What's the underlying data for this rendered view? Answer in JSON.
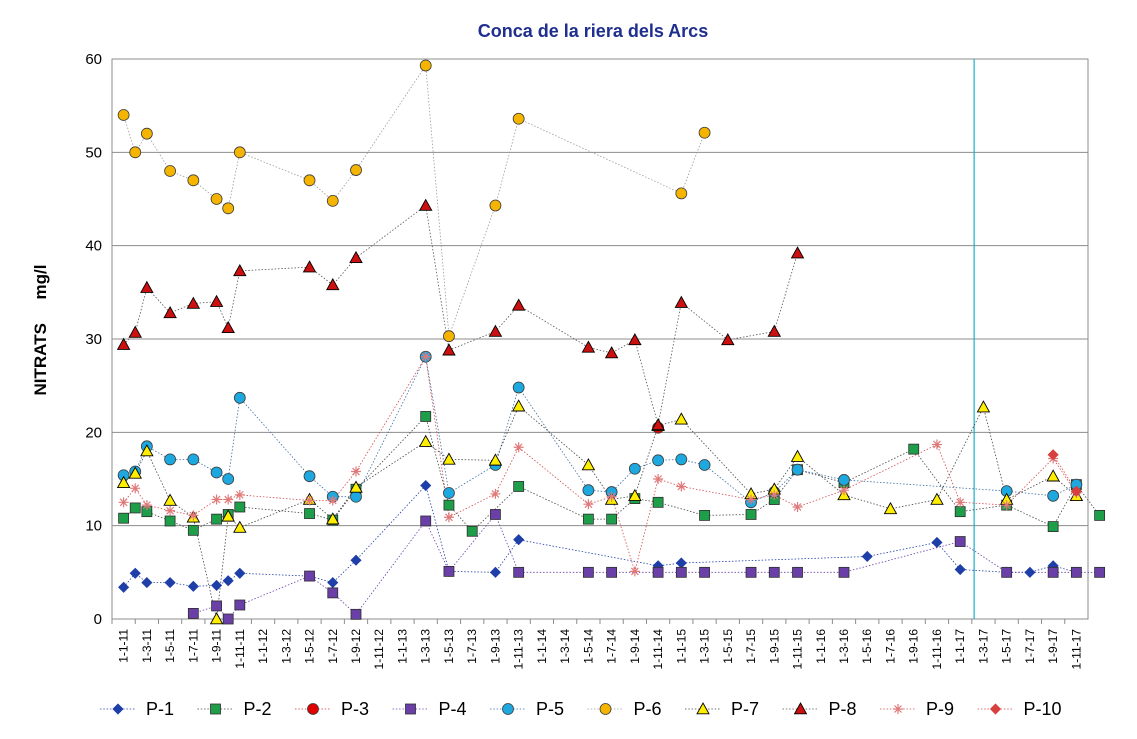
{
  "chart_data": {
    "type": "line",
    "title": "Conca de la riera dels Arcs",
    "ylabel": "NITRATS     mg/l",
    "xlabel": "",
    "ylim": [
      0,
      60
    ],
    "y_ticks": [
      "0",
      "10",
      "20",
      "30",
      "40",
      "50",
      "60"
    ],
    "x_ticks": [
      "1-1-11",
      "1-3-11",
      "1-5-11",
      "1-7-11",
      "1-9-11",
      "1-11-11",
      "1-1-12",
      "1-3-12",
      "1-5-12",
      "1-7-12",
      "1-9-12",
      "1-11-12",
      "1-1-13",
      "1-3-13",
      "1-5-13",
      "1-7-13",
      "1-9-13",
      "1-11-13",
      "1-1-14",
      "1-3-14",
      "1-5-14",
      "1-7-14",
      "1-9-14",
      "1-11-14",
      "1-1-15",
      "1-3-15",
      "1-5-15",
      "1-7-15",
      "1-9-15",
      "1-11-15",
      "1-1-16",
      "1-3-16",
      "1-5-16",
      "1-7-16",
      "1-9-16",
      "1-11-16",
      "1-1-17",
      "1-3-17",
      "1-5-17",
      "1-7-17",
      "1-9-17",
      "1-11-17"
    ],
    "grid": "horizontal",
    "legend_position": "bottom",
    "vertical_marker_x": 36.6,
    "series": [
      {
        "name": "P-1",
        "color": "#1f3fa8",
        "marker": "diamond",
        "line": "#1f3fa8",
        "points": [
          [
            0,
            3.4
          ],
          [
            0.5,
            4.9
          ],
          [
            1,
            3.9
          ],
          [
            2,
            3.9
          ],
          [
            3,
            3.5
          ],
          [
            4,
            3.6
          ],
          [
            4.5,
            4.1
          ],
          [
            5,
            4.9
          ],
          [
            8,
            4.6
          ],
          [
            9,
            3.9
          ],
          [
            10,
            6.3
          ],
          [
            13,
            14.3
          ],
          [
            14,
            5.1
          ],
          [
            16,
            5
          ],
          [
            17,
            8.5
          ],
          [
            23,
            5.7
          ],
          [
            24,
            6
          ],
          [
            32,
            6.7
          ],
          [
            35,
            8.2
          ],
          [
            36,
            5.3
          ],
          [
            38,
            5
          ],
          [
            39,
            5
          ],
          [
            40,
            5.7
          ],
          [
            41,
            5
          ]
        ]
      },
      {
        "name": "P-2",
        "color": "#1f9e4a",
        "marker": "square",
        "line": "#444444",
        "points": [
          [
            0,
            10.8
          ],
          [
            0.5,
            11.9
          ],
          [
            1,
            11.5
          ],
          [
            2,
            10.5
          ],
          [
            3,
            9.5
          ],
          [
            4,
            10.7
          ],
          [
            4.5,
            11.2
          ],
          [
            5,
            12
          ],
          [
            8,
            11.3
          ],
          [
            9,
            10.6
          ],
          [
            10,
            13.9
          ],
          [
            13,
            21.7
          ],
          [
            14,
            12.2
          ],
          [
            15,
            9.4
          ],
          [
            17,
            14.2
          ],
          [
            20,
            10.7
          ],
          [
            21,
            10.7
          ],
          [
            22,
            12.9
          ],
          [
            23,
            12.5
          ],
          [
            25,
            11.1
          ],
          [
            27,
            11.2
          ],
          [
            28,
            12.8
          ],
          [
            29,
            16
          ],
          [
            31,
            14.6
          ],
          [
            34,
            18.2
          ],
          [
            36,
            11.5
          ],
          [
            38,
            12.2
          ],
          [
            40,
            9.9
          ],
          [
            41,
            14.4
          ],
          [
            42,
            11.1
          ]
        ]
      },
      {
        "name": "P-3",
        "color": "#e00000",
        "marker": "circle",
        "line": "#cc3333",
        "points": [
          [
            23,
            20.5
          ]
        ]
      },
      {
        "name": "P-4",
        "color": "#6a3fa8",
        "marker": "square",
        "line": "#6a3fa8",
        "points": [
          [
            3,
            0.6
          ],
          [
            4,
            1.4
          ],
          [
            4.5,
            0
          ],
          [
            5,
            1.5
          ],
          [
            8,
            4.6
          ],
          [
            9,
            2.8
          ],
          [
            10,
            0.5
          ],
          [
            13,
            10.5
          ],
          [
            14,
            5.1
          ],
          [
            16,
            11.2
          ],
          [
            17,
            5
          ],
          [
            20,
            5
          ],
          [
            21,
            5
          ],
          [
            23,
            5
          ],
          [
            24,
            5
          ],
          [
            25,
            5
          ],
          [
            27,
            5
          ],
          [
            28,
            5
          ],
          [
            29,
            5
          ],
          [
            31,
            5
          ],
          [
            36,
            8.3
          ],
          [
            38,
            5
          ],
          [
            40,
            5
          ],
          [
            41,
            5
          ],
          [
            42,
            5
          ]
        ]
      },
      {
        "name": "P-5",
        "color": "#1ea8e0",
        "marker": "circle",
        "line": "#3a6ea8",
        "points": [
          [
            0,
            15.4
          ],
          [
            0.5,
            15.8
          ],
          [
            1,
            18.5
          ],
          [
            2,
            17.1
          ],
          [
            3,
            17.1
          ],
          [
            4,
            15.7
          ],
          [
            4.5,
            15
          ],
          [
            5,
            23.7
          ],
          [
            8,
            15.3
          ],
          [
            9,
            13.1
          ],
          [
            10,
            13.1
          ],
          [
            13,
            28.1
          ],
          [
            14,
            13.5
          ],
          [
            16,
            16.5
          ],
          [
            17,
            24.8
          ],
          [
            20,
            13.8
          ],
          [
            21,
            13.6
          ],
          [
            22,
            16.1
          ],
          [
            23,
            17
          ],
          [
            24,
            17.1
          ],
          [
            25,
            16.5
          ],
          [
            27,
            12.5
          ],
          [
            28,
            13.6
          ],
          [
            29,
            16
          ],
          [
            31,
            14.9
          ],
          [
            38,
            13.7
          ],
          [
            40,
            13.2
          ],
          [
            41,
            14.4
          ]
        ]
      },
      {
        "name": "P-6",
        "color": "#f5b400",
        "marker": "circle",
        "line": "#9a9a9a",
        "points": [
          [
            0,
            54
          ],
          [
            0.5,
            50
          ],
          [
            1,
            52
          ],
          [
            2,
            48
          ],
          [
            3,
            47
          ],
          [
            4,
            45
          ],
          [
            4.5,
            44
          ],
          [
            5,
            50
          ],
          [
            8,
            47
          ],
          [
            9,
            44.8
          ],
          [
            10,
            48.1
          ],
          [
            13,
            59.3
          ],
          [
            14,
            30.3
          ],
          [
            16,
            44.3
          ],
          [
            17,
            53.6
          ],
          [
            24,
            45.6
          ],
          [
            25,
            52.1
          ]
        ]
      },
      {
        "name": "P-7",
        "color": "#ffee00",
        "marker": "triangle",
        "line": "#444444",
        "points": [
          [
            0,
            14.6
          ],
          [
            0.5,
            15.6
          ],
          [
            1,
            18
          ],
          [
            2,
            12.7
          ],
          [
            3,
            10.9
          ],
          [
            4,
            0
          ],
          [
            4.5,
            11
          ],
          [
            5,
            9.8
          ],
          [
            8,
            12.8
          ],
          [
            9,
            10.7
          ],
          [
            10,
            14.1
          ],
          [
            13,
            19
          ],
          [
            14,
            17.1
          ],
          [
            16,
            17
          ],
          [
            17,
            22.8
          ],
          [
            20,
            16.5
          ],
          [
            21,
            12.8
          ],
          [
            22,
            13.2
          ],
          [
            23,
            20.7
          ],
          [
            24,
            21.4
          ],
          [
            27,
            13.4
          ],
          [
            28,
            13.9
          ],
          [
            29,
            17.4
          ],
          [
            31,
            13.3
          ],
          [
            33,
            11.8
          ],
          [
            35,
            12.8
          ],
          [
            37,
            22.7
          ],
          [
            38,
            12.8
          ],
          [
            40,
            15.3
          ],
          [
            41,
            13.2
          ]
        ]
      },
      {
        "name": "P-8",
        "color": "#cc1010",
        "marker": "triangle",
        "line": "#555555",
        "points": [
          [
            0,
            29.4
          ],
          [
            0.5,
            30.7
          ],
          [
            1,
            35.5
          ],
          [
            2,
            32.8
          ],
          [
            3,
            33.8
          ],
          [
            4,
            34
          ],
          [
            4.5,
            31.2
          ],
          [
            5,
            37.3
          ],
          [
            8,
            37.7
          ],
          [
            9,
            35.8
          ],
          [
            10,
            38.7
          ],
          [
            13,
            44.3
          ],
          [
            14,
            28.8
          ],
          [
            16,
            30.8
          ],
          [
            17,
            33.6
          ],
          [
            20,
            29.1
          ],
          [
            21,
            28.5
          ],
          [
            22,
            29.9
          ],
          [
            23,
            20.8
          ],
          [
            24,
            33.9
          ],
          [
            26,
            29.9
          ],
          [
            28,
            30.8
          ],
          [
            29,
            39.2
          ]
        ]
      },
      {
        "name": "P-9",
        "color": "#e07a7a",
        "marker": "star",
        "line": "#d24a4a",
        "points": [
          [
            0,
            12.5
          ],
          [
            0.5,
            14
          ],
          [
            1,
            12.2
          ],
          [
            2,
            11.6
          ],
          [
            3,
            11.1
          ],
          [
            4,
            12.8
          ],
          [
            4.5,
            12.8
          ],
          [
            5,
            13.3
          ],
          [
            8,
            12.7
          ],
          [
            9,
            12.7
          ],
          [
            10,
            15.8
          ],
          [
            13,
            28.1
          ],
          [
            14,
            10.9
          ],
          [
            16,
            13.4
          ],
          [
            17,
            18.4
          ],
          [
            20,
            12.3
          ],
          [
            21,
            13.1
          ],
          [
            22,
            5.1
          ],
          [
            23,
            15
          ],
          [
            24,
            14.2
          ],
          [
            27,
            12.8
          ],
          [
            28,
            13.3
          ],
          [
            29,
            12
          ],
          [
            31,
            13.8
          ],
          [
            35,
            18.7
          ],
          [
            36,
            12.5
          ],
          [
            38,
            12.2
          ],
          [
            40,
            17.2
          ],
          [
            41,
            13.5
          ]
        ]
      },
      {
        "name": "P-10",
        "color": "#d84040",
        "marker": "diamond",
        "line": "#d84040",
        "points": [
          [
            40,
            17.6
          ],
          [
            41,
            13.7
          ]
        ]
      }
    ]
  }
}
